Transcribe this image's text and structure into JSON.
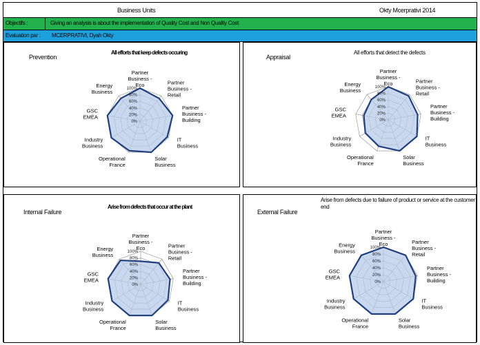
{
  "header": {
    "title": "Business Units",
    "author": "Okty Mcerprativi 2014"
  },
  "objectives": {
    "label": "Objectifs :",
    "value": "Giving an analysis is about the implementation of Quality Cost and Non Quality Cost"
  },
  "evaluation": {
    "label": "Evaluation par :",
    "value": "MCERPRATIVI, Dyah Okty"
  },
  "colors": {
    "objectives_bar": "#22b14c",
    "evaluation_bar": "#1da0dc",
    "series_line": "#1f3f7f",
    "series_fill": "#b7cbe8",
    "grid": "#888888"
  },
  "panels": [
    {
      "name": "Prevention",
      "description": "All efforts that keep defects occuring",
      "description_bold": true
    },
    {
      "name": "Appraisal",
      "description": "All efforts that detect the defects",
      "description_bold": false
    },
    {
      "name": "Internal Failure",
      "description": "Arise from defects that occur at the plant",
      "description_bold": true
    },
    {
      "name": "External Failure",
      "description": "Arise from defects due to failure of product or service at the customer end",
      "description_bold": false
    }
  ],
  "chart_data": [
    {
      "type": "radar",
      "categories": [
        "Partner Business - Eco",
        "Partner Business - Retail",
        "Partner Business - Building",
        "IT Business",
        "Solar Business",
        "Operational France",
        "Industry Business",
        "GSC EMEA",
        "Energy Business"
      ],
      "tick_labels": [
        "100%",
        "80%",
        "60%",
        "40%",
        "20%",
        "0%"
      ],
      "series": [
        {
          "values": [
            1.0,
            0.9,
            1.0,
            0.95,
            1.0,
            0.95,
            1.0,
            1.0,
            0.9
          ]
        }
      ],
      "rlim": [
        0,
        1
      ]
    },
    {
      "type": "radar",
      "categories": [
        "Partner Business - Eco",
        "Partner Business - Retail",
        "Partner Business - Building",
        "IT Business",
        "Solar Business",
        "Operational France",
        "Industry Business",
        "GSC EMEA",
        "Energy Business"
      ],
      "tick_labels": [
        "100%",
        "80%",
        "60%",
        "40%",
        "20%",
        "0%"
      ],
      "series": [
        {
          "values": [
            1.0,
            0.95,
            0.9,
            1.0,
            1.0,
            0.85,
            0.8,
            0.75,
            0.8
          ]
        }
      ],
      "rlim": [
        0,
        1
      ]
    },
    {
      "type": "radar",
      "categories": [
        "Partner Business - Eco",
        "Partner Business - Retail",
        "Partner Business - Building",
        "IT Business",
        "Solar Business",
        "Operational France",
        "Industry Business",
        "GSC EMEA",
        "Energy Business"
      ],
      "tick_labels": [
        "100%",
        "80%",
        "60%",
        "40%",
        "20%",
        "0%"
      ],
      "series": [
        {
          "values": [
            0.7,
            0.85,
            0.9,
            0.95,
            1.0,
            1.0,
            1.0,
            1.0,
            0.95
          ]
        }
      ],
      "rlim": [
        0,
        1
      ]
    },
    {
      "type": "radar",
      "categories": [
        "Partner Business - Eco",
        "Partner Business - Retail",
        "Partner Business - Building",
        "IT Business",
        "Solar Business",
        "Operational France",
        "Industry Business",
        "GSC EMEA",
        "Energy Business"
      ],
      "tick_labels": [
        "100%",
        "80%",
        "60%",
        "40%",
        "20%",
        "0%"
      ],
      "series": [
        {
          "values": [
            1.0,
            1.0,
            0.95,
            1.0,
            1.0,
            1.0,
            1.0,
            1.0,
            1.0
          ]
        }
      ],
      "rlim": [
        0,
        1
      ]
    }
  ]
}
